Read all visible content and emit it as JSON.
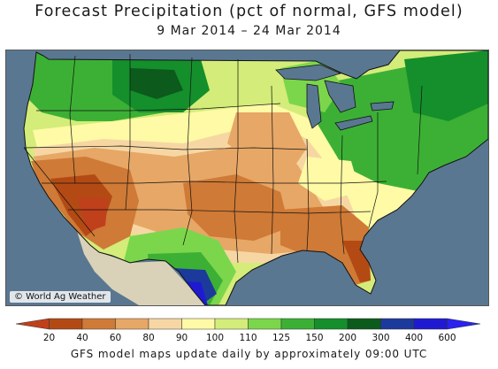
{
  "title": "Forecast Precipitation (pct of normal, GFS model)",
  "date_range": "9 Mar 2014 – 24 Mar 2014",
  "credit": "© World Ag Weather",
  "footer_note": "GFS model maps update daily by approximately 09:00 UTC",
  "legend": {
    "thresholds": [
      "20",
      "40",
      "60",
      "80",
      "90",
      "100",
      "110",
      "125",
      "150",
      "200",
      "300",
      "400",
      "600"
    ],
    "colors": [
      "#c0401c",
      "#b34a14",
      "#cf7a36",
      "#e7a766",
      "#f6d7a3",
      "#fffaa5",
      "#d4ec79",
      "#7bd64b",
      "#3cb035",
      "#148f2b",
      "#0c5a1c",
      "#1c3a9c",
      "#1f1ad2",
      "#2a22ee"
    ]
  },
  "colors": {
    "ocean": "#5a7791",
    "lake": "#5a7791",
    "land_outside": "#d2d2d2",
    "border": "#111111"
  }
}
